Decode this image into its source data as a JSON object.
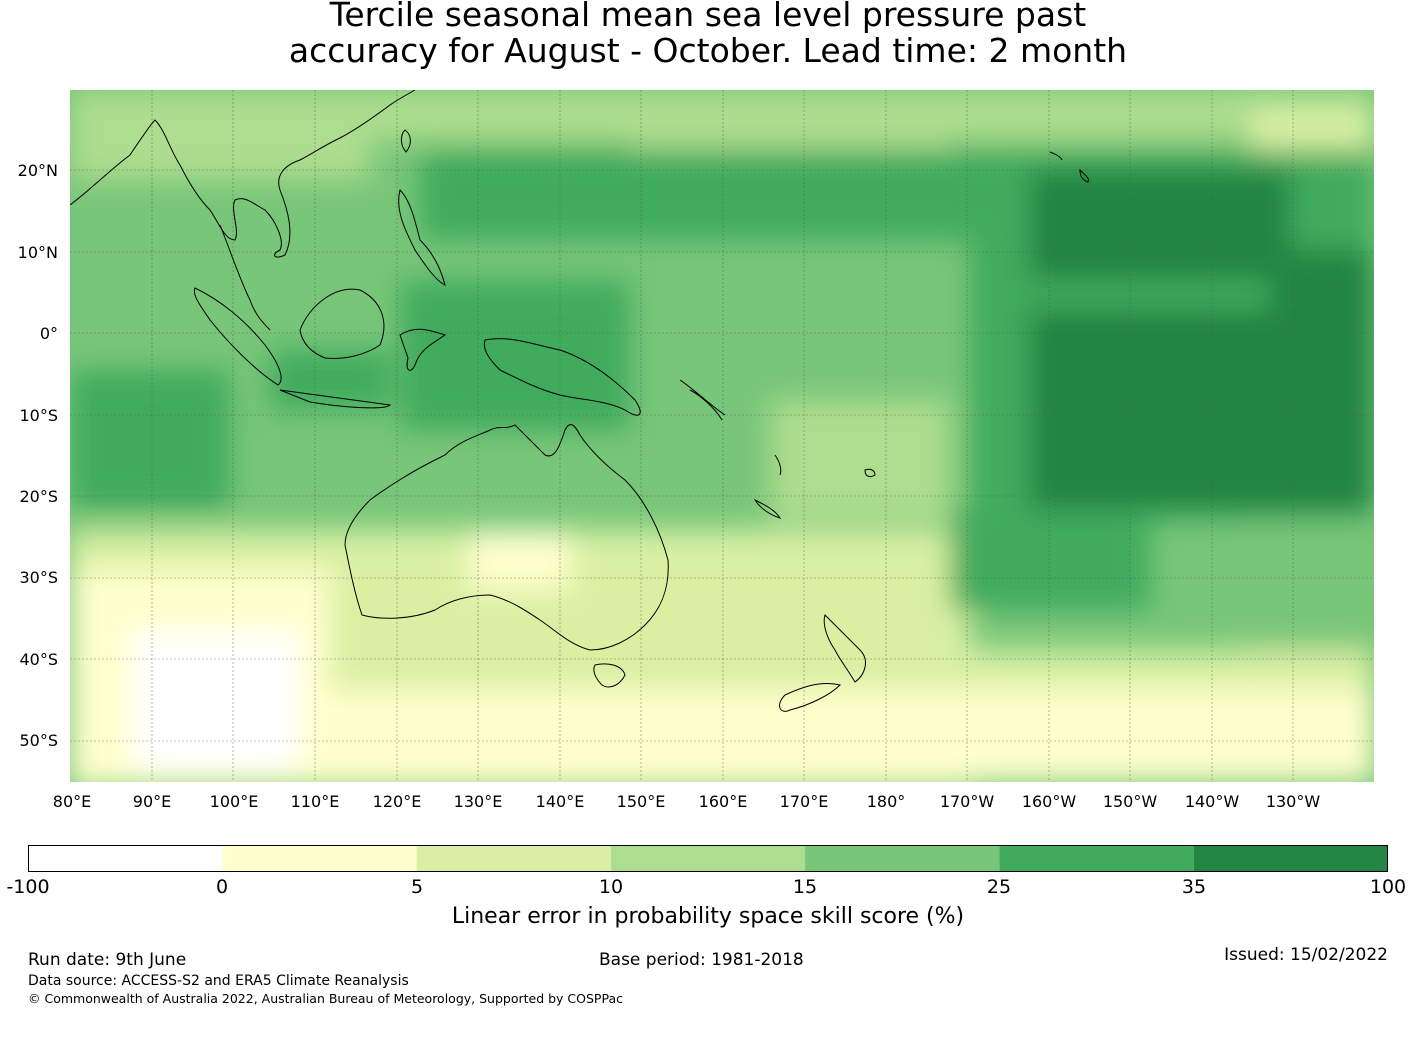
{
  "title": {
    "line1": "Tercile seasonal mean sea level pressure past",
    "line2": "accuracy for August - October. Lead time: 2 month"
  },
  "map": {
    "lat_labels": [
      "20°N",
      "10°N",
      "0°",
      "10°S",
      "20°S",
      "30°S",
      "40°S",
      "50°S"
    ],
    "lon_labels": [
      "80°E",
      "90°E",
      "100°E",
      "110°E",
      "120°E",
      "130°E",
      "140°E",
      "150°E",
      "160°E",
      "170°E",
      "180°",
      "170°W",
      "160°W",
      "150°W",
      "140°W",
      "130°W"
    ],
    "description_regions": [
      "Australia",
      "Indonesia",
      "Papua New Guinea",
      "New Zealand",
      "Pacific Ocean"
    ]
  },
  "colorbar": {
    "ticks": [
      "-100",
      "0",
      "5",
      "10",
      "15",
      "25",
      "35",
      "100"
    ],
    "colors": [
      "#ffffff",
      "#ffffcc",
      "#d9f0a3",
      "#addd8e",
      "#78c679",
      "#41ab5d",
      "#238443"
    ],
    "label": "Linear error in probability space skill score (%)"
  },
  "footer": {
    "run_date": "Run date: 9th June",
    "base_period": "Base period: 1981-2018",
    "issued": "Issued: 15/02/2022",
    "data_source": "Data source: ACCESS-S2 and ERA5 Climate Reanalysis",
    "copyright": "© Commonwealth of Australia 2022, Australian Bureau of Meteorology, Supported by COSPPac"
  }
}
